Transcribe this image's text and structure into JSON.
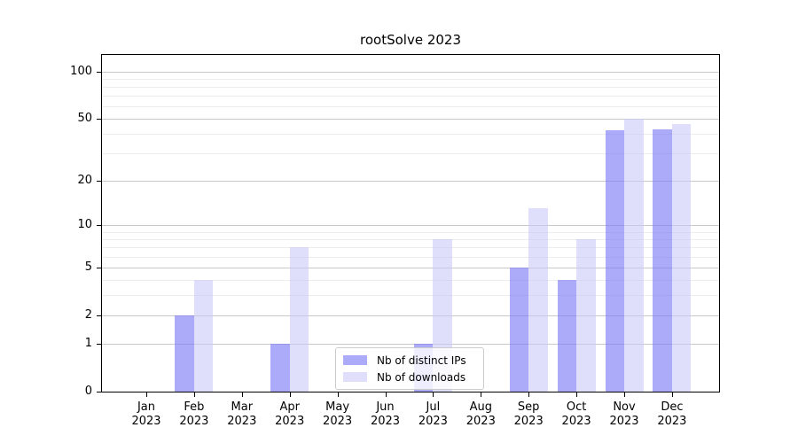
{
  "chart_data": {
    "type": "bar",
    "title": "rootSolve 2023",
    "categories": [
      "Jan 2023",
      "Feb 2023",
      "Mar 2023",
      "Apr 2023",
      "May 2023",
      "Jun 2023",
      "Jul 2023",
      "Aug 2023",
      "Sep 2023",
      "Oct 2023",
      "Nov 2023",
      "Dec 2023"
    ],
    "series": [
      {
        "name": "Nb of distinct IPs",
        "color": "rgba(122,122,245,0.63)",
        "color_hex": "#a9a9f8",
        "values": [
          0,
          2,
          0,
          1,
          0,
          0,
          1,
          0,
          5,
          4,
          42,
          43
        ]
      },
      {
        "name": "Nb of downloads",
        "color": "rgba(200,200,248,0.58)",
        "color_hex": "#dedefb",
        "values": [
          0,
          4,
          0,
          7,
          0,
          0,
          8,
          0,
          13,
          8,
          50,
          46
        ]
      }
    ],
    "yscale": "log1p",
    "ylim": [
      0,
      127
    ],
    "yticks_major": [
      0,
      1,
      2,
      5,
      10,
      20,
      50,
      100
    ],
    "yticks_minor": [
      3,
      4,
      6,
      7,
      8,
      9,
      30,
      40,
      60,
      70,
      80,
      90
    ],
    "xlabel": "",
    "ylabel": "",
    "grid": true,
    "legend": {
      "position": "lower center",
      "entries": [
        "Nb of distinct IPs",
        "Nb of downloads"
      ]
    },
    "colors": {
      "background": "#ffffff",
      "axis": "#000000",
      "major_grid": "#c9c9c9",
      "minor_grid": "#ededed",
      "legend_border": "#cccccc"
    }
  }
}
